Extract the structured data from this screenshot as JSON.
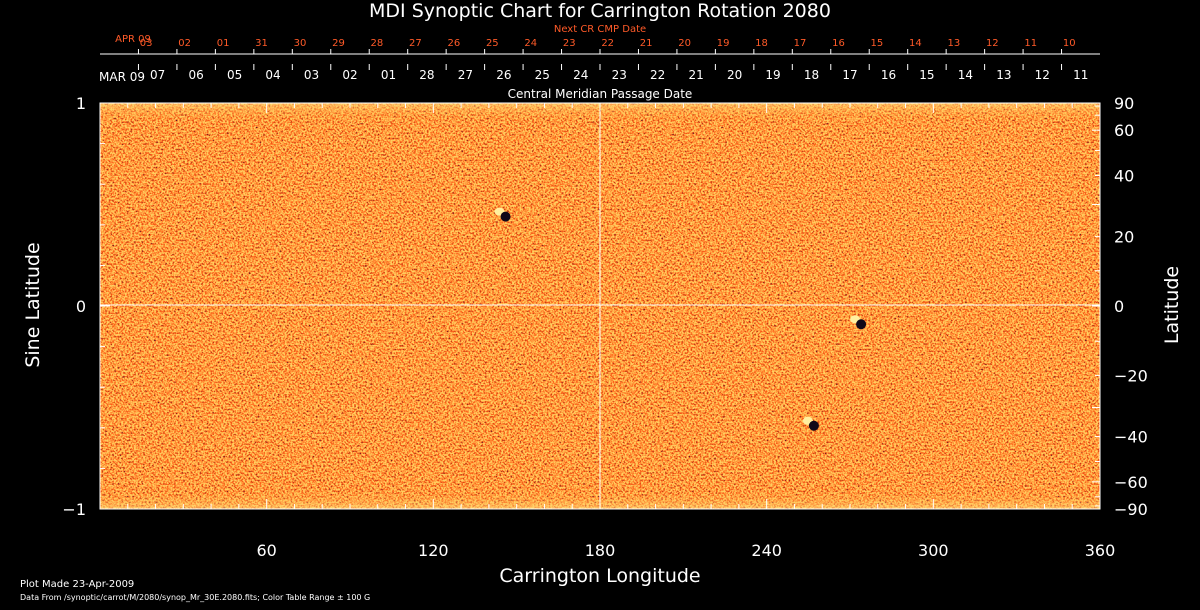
{
  "chart_data": {
    "type": "heatmap",
    "title": "MDI Synoptic Chart for Carrington Rotation 2080",
    "xlabel": "Carrington Longitude",
    "ylabel_left": "Sine Latitude",
    "ylabel_right": "Latitude",
    "top_axis_label": "Central Meridian Passage Date",
    "next_cr_label": "Next CR CMP Date",
    "xlim": [
      0,
      360
    ],
    "ylim": [
      -1,
      1
    ],
    "x_ticks": [
      60,
      120,
      180,
      240,
      300,
      360
    ],
    "y_ticks_left": [
      -1,
      0,
      1
    ],
    "y_ticks_left_labels": [
      "−1",
      "0",
      "1"
    ],
    "y_ticks_right": [
      -90,
      -60,
      -40,
      -20,
      0,
      20,
      40,
      60,
      90
    ],
    "y_ticks_right_labels": [
      "−90",
      "−60",
      "−40",
      "−20",
      "0",
      "20",
      "40",
      "60",
      "90"
    ],
    "cmp_month_label": "MAR 09",
    "cmp_dates": [
      "07",
      "06",
      "05",
      "04",
      "03",
      "02",
      "01",
      "28",
      "27",
      "26",
      "25",
      "24",
      "23",
      "22",
      "21",
      "20",
      "19",
      "18",
      "17",
      "16",
      "15",
      "14",
      "13",
      "12",
      "11"
    ],
    "next_cr_month_label": "APR 09",
    "next_cr_dates": [
      "03",
      "02",
      "01",
      "31",
      "30",
      "29",
      "28",
      "27",
      "26",
      "25",
      "24",
      "23",
      "22",
      "21",
      "20",
      "19",
      "18",
      "17",
      "16",
      "15",
      "14",
      "13",
      "12",
      "11",
      "10"
    ],
    "colors": {
      "background": "#000000",
      "field": "#ff5a14",
      "positive": "#ffe070",
      "negative": "#1a0830",
      "next_cr_text": "#ff5a28",
      "axes": "#ffffff"
    },
    "active_regions": [
      {
        "longitude": 274,
        "sine_latitude": -0.08,
        "polarity": "bipolar"
      },
      {
        "longitude": 146,
        "sine_latitude": 0.45,
        "polarity": "bipolar"
      },
      {
        "longitude": 257,
        "sine_latitude": -0.58,
        "polarity": "bipolar"
      }
    ]
  },
  "footer": {
    "plot_made": "Plot Made 23-Apr-2009",
    "data_from": "Data From /synoptic/carrot/M/2080/synop_Mr_30E.2080.fits; Color Table Range ± 100 G"
  }
}
